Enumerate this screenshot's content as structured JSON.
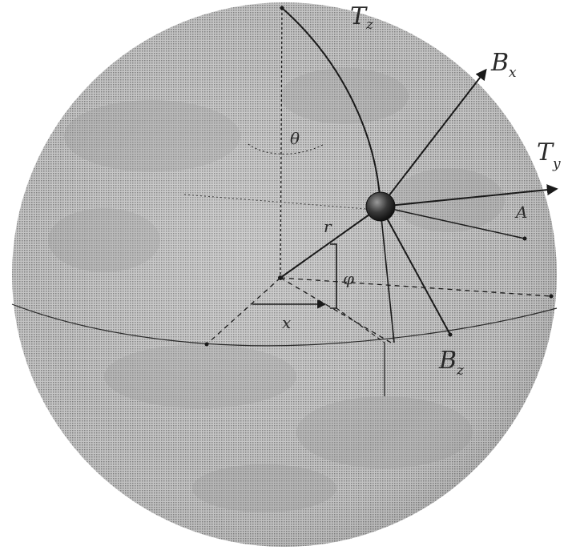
{
  "labels": {
    "top_axis": {
      "main": "T",
      "sub": "z"
    },
    "bx_axis": {
      "main": "B",
      "sub": "x"
    },
    "ty_axis": {
      "main": "T",
      "sub": "y"
    },
    "bz_axis": {
      "main": "B",
      "sub": "z"
    },
    "theta": "θ",
    "phi": "φ",
    "x_axis": "x",
    "r": "r",
    "pointA": "A"
  },
  "colors": {
    "globe": "#b4b4b4",
    "globe_dark": "#8f8f8f",
    "line": "#1a1a1a",
    "ball": "#2b2b2b"
  }
}
